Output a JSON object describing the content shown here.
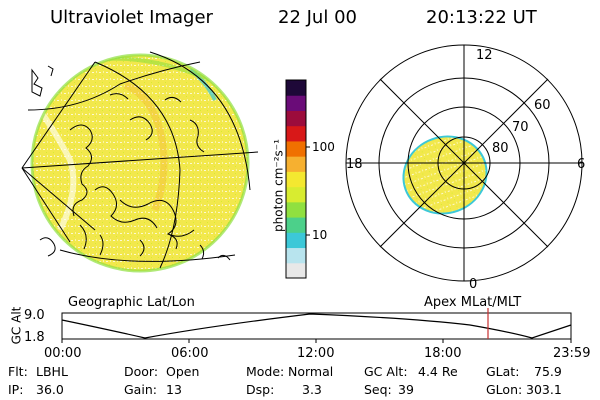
{
  "header": {
    "title": "Ultraviolet Imager",
    "date": "22 Jul 00",
    "time": "20:13:22 UT"
  },
  "colorbar": {
    "label": "photon cm⁻²s⁻¹",
    "ticks": [
      "100",
      "10"
    ],
    "colors": [
      "#e8e8e8",
      "#b8e4ee",
      "#3cc8d8",
      "#4cd08a",
      "#90e040",
      "#d8ec30",
      "#f4e830",
      "#f6b030",
      "#f07000",
      "#d81818",
      "#9c0c3c",
      "#6a0c78",
      "#1e0838"
    ]
  },
  "left_map": {
    "caption": "Geographic Lat/Lon",
    "fill_color": "#f0e84a"
  },
  "polar_plot": {
    "caption": "Apex MLat/MLT",
    "mlt_labels": {
      "top": "12",
      "right": "6",
      "bottom": "0",
      "left": "18"
    },
    "lat_labels": [
      "80",
      "70",
      "60"
    ]
  },
  "gc_alt_chart": {
    "ylabel": "GC Alt",
    "yticks": [
      "9.0",
      "1.8"
    ],
    "xticks": [
      "00:00",
      "06:00",
      "12:00",
      "18:00",
      "23:59"
    ],
    "current_time_marker": "20:13",
    "marker_color": "#c83030"
  },
  "status": {
    "flt_label": "Flt:",
    "flt_value": "LBHL",
    "ip_label": "IP:",
    "ip_value": "36.0",
    "door_label": "Door:",
    "door_value": "Open",
    "gain_label": "Gain:",
    "gain_value": "13",
    "mode_label": "Mode:",
    "mode_value": "Normal",
    "dsp_label": "Dsp:",
    "dsp_value": "3.3",
    "gcalt_label": "GC Alt:",
    "gcalt_value": "4.4 Re",
    "seq_label": "Seq:",
    "seq_value": "39",
    "glat_label": "GLat:",
    "glat_value": "75.9",
    "glon_label": "GLon:",
    "glon_value": "303.1"
  }
}
